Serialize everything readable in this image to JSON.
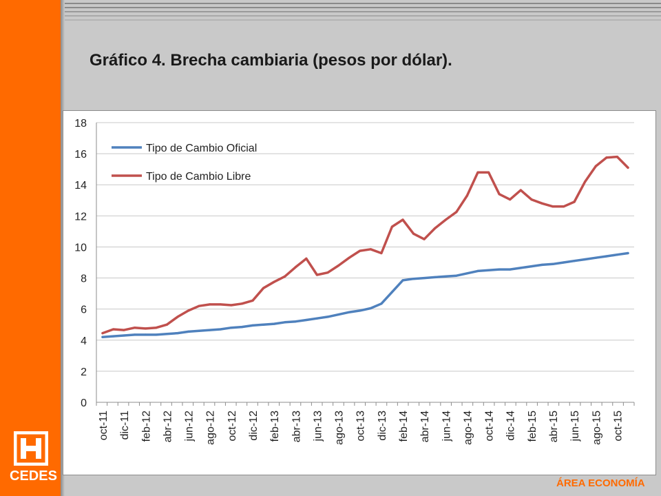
{
  "slide": {
    "title": "Gráfico 4. Brecha cambiaria (pesos por dólar).",
    "logo_text": "CEDES",
    "area_label": "ÁREA ECONOMÍA",
    "colors": {
      "accent": "#ff6a00",
      "background": "#c9c9c9"
    }
  },
  "chart_data": {
    "type": "line",
    "title": "",
    "xlabel": "",
    "ylabel": "",
    "ylim": [
      0,
      18
    ],
    "yticks": [
      0,
      2,
      4,
      6,
      8,
      10,
      12,
      14,
      16,
      18
    ],
    "grid": "horizontal",
    "legend": "top-left",
    "x": [
      "oct-11",
      "nov-11",
      "dic-11",
      "ene-12",
      "feb-12",
      "mar-12",
      "abr-12",
      "may-12",
      "jun-12",
      "jul-12",
      "ago-12",
      "sep-12",
      "oct-12",
      "nov-12",
      "dic-12",
      "ene-13",
      "feb-13",
      "mar-13",
      "abr-13",
      "may-13",
      "jun-13",
      "jul-13",
      "ago-13",
      "sep-13",
      "oct-13",
      "nov-13",
      "dic-13",
      "ene-14",
      "feb-14",
      "mar-14",
      "abr-14",
      "may-14",
      "jun-14",
      "jul-14",
      "ago-14",
      "sep-14",
      "oct-14",
      "nov-14",
      "dic-14",
      "ene-15",
      "feb-15",
      "mar-15",
      "abr-15",
      "may-15",
      "jun-15",
      "jul-15",
      "ago-15",
      "sep-15",
      "oct-15",
      "nov-15"
    ],
    "x_tick_labels": [
      "oct-11",
      "dic-11",
      "feb-12",
      "abr-12",
      "jun-12",
      "ago-12",
      "oct-12",
      "dic-12",
      "feb-13",
      "abr-13",
      "jun-13",
      "ago-13",
      "oct-13",
      "dic-13",
      "feb-14",
      "abr-14",
      "jun-14",
      "ago-14",
      "oct-14",
      "dic-14",
      "feb-15",
      "abr-15",
      "jun-15",
      "ago-15",
      "oct-15"
    ],
    "series": [
      {
        "name": "Tipo de Cambio Oficial",
        "color": "#4f81bd",
        "values": [
          4.2,
          4.25,
          4.3,
          4.35,
          4.35,
          4.35,
          4.4,
          4.45,
          4.55,
          4.6,
          4.65,
          4.7,
          4.8,
          4.85,
          4.95,
          5.0,
          5.05,
          5.15,
          5.2,
          5.3,
          5.4,
          5.5,
          5.65,
          5.8,
          5.9,
          6.05,
          6.35,
          7.1,
          7.85,
          7.95,
          8.0,
          8.05,
          8.1,
          8.15,
          8.3,
          8.45,
          8.5,
          8.55,
          8.55,
          8.65,
          8.75,
          8.85,
          8.9,
          9.0,
          9.1,
          9.2,
          9.3,
          9.4,
          9.5,
          9.6
        ]
      },
      {
        "name": "Tipo de Cambio Libre",
        "color": "#c0504d",
        "values": [
          4.45,
          4.7,
          4.65,
          4.8,
          4.75,
          4.8,
          5.0,
          5.5,
          5.9,
          6.2,
          6.3,
          6.3,
          6.25,
          6.35,
          6.55,
          7.35,
          7.75,
          8.1,
          8.7,
          9.25,
          8.2,
          8.35,
          8.8,
          9.3,
          9.75,
          9.85,
          9.6,
          11.3,
          11.75,
          10.85,
          10.5,
          11.2,
          11.75,
          12.25,
          13.3,
          14.8,
          14.8,
          13.4,
          13.05,
          13.65,
          13.05,
          12.8,
          12.6,
          12.6,
          12.9,
          14.2,
          15.2,
          15.75,
          15.8,
          15.1
        ]
      }
    ]
  }
}
